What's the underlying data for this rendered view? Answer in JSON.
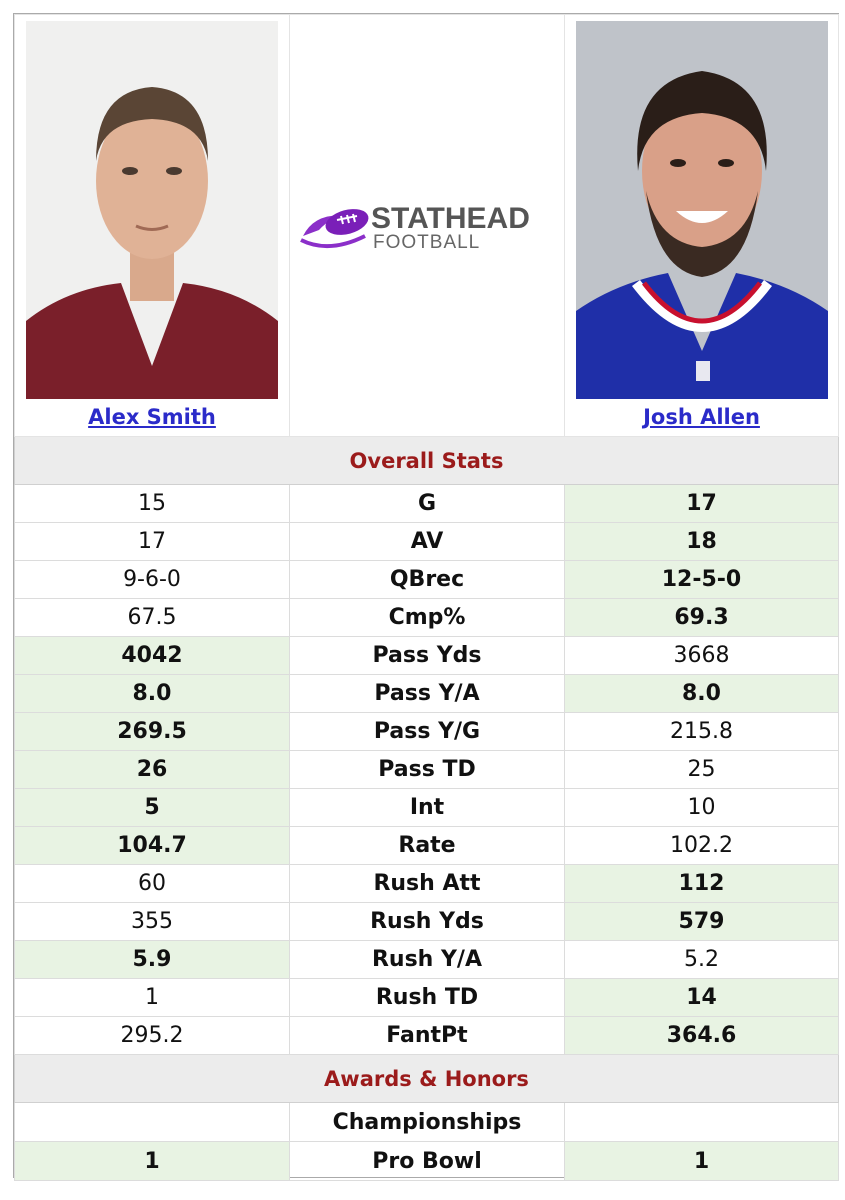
{
  "players": {
    "left": {
      "name": "Alex Smith",
      "jersey_color": "#7a1f2a"
    },
    "right": {
      "name": "Josh Allen",
      "jersey_color": "#1f2fa8"
    }
  },
  "logo": {
    "line1": "STATHEAD",
    "line2": "FOOTBALL",
    "accent": "#8b2fc9"
  },
  "sections": {
    "overall": "Overall Stats",
    "awards": "Awards & Honors"
  },
  "stats": [
    {
      "label": "G",
      "left": "15",
      "right": "17",
      "winner": "right"
    },
    {
      "label": "AV",
      "left": "17",
      "right": "18",
      "winner": "right"
    },
    {
      "label": "QBrec",
      "left": "9-6-0",
      "right": "12-5-0",
      "winner": "right"
    },
    {
      "label": "Cmp%",
      "left": "67.5",
      "right": "69.3",
      "winner": "right"
    },
    {
      "label": "Pass Yds",
      "left": "4042",
      "right": "3668",
      "winner": "left"
    },
    {
      "label": "Pass Y/A",
      "left": "8.0",
      "right": "8.0",
      "winner": "both"
    },
    {
      "label": "Pass Y/G",
      "left": "269.5",
      "right": "215.8",
      "winner": "left"
    },
    {
      "label": "Pass TD",
      "left": "26",
      "right": "25",
      "winner": "left"
    },
    {
      "label": "Int",
      "left": "5",
      "right": "10",
      "winner": "left"
    },
    {
      "label": "Rate",
      "left": "104.7",
      "right": "102.2",
      "winner": "left"
    },
    {
      "label": "Rush Att",
      "left": "60",
      "right": "112",
      "winner": "right"
    },
    {
      "label": "Rush Yds",
      "left": "355",
      "right": "579",
      "winner": "right"
    },
    {
      "label": "Rush Y/A",
      "left": "5.9",
      "right": "5.2",
      "winner": "left"
    },
    {
      "label": "Rush TD",
      "left": "1",
      "right": "14",
      "winner": "right"
    },
    {
      "label": "FantPt",
      "left": "295.2",
      "right": "364.6",
      "winner": "right"
    }
  ],
  "awards": {
    "championships": {
      "label": "Championships",
      "left": "",
      "right": ""
    },
    "pro_bowl": {
      "label": "Pro Bowl",
      "left": "1",
      "right": "1",
      "winner": "both"
    }
  },
  "colors": {
    "win_bg": "#e8f3e3",
    "section_text": "#9b1b1b",
    "link": "#2b2bc9"
  }
}
